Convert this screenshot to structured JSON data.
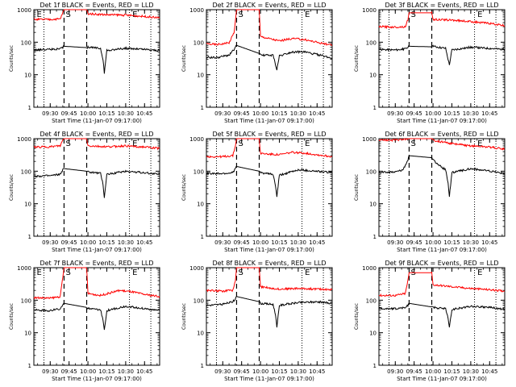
{
  "figure": {
    "x_axis_label": "Start Time (11-Jan-07 09:17:00)",
    "y_axis_label": "Counts/sec",
    "x_tick_labels": [
      "09:30",
      "09:45",
      "10:00",
      "10:15",
      "10:30",
      "10:45"
    ],
    "y_tick_labels": [
      "1",
      "10",
      "100",
      "1000"
    ],
    "colors": {
      "events": "#000000",
      "lld": "#ff0000",
      "frame": "#000000",
      "background": "#ffffff"
    },
    "markers": {
      "S": "S",
      "E": "E"
    }
  },
  "chart_data": [
    {
      "type": "line",
      "title": "Det 1f BLACK = Events, RED = LLD",
      "xlabel": "Start Time (11-Jan-07 09:17:00)",
      "ylabel": "Counts/sec",
      "x_unit": "time of day (hh:mm)",
      "xlim": [
        "09:17",
        "10:57"
      ],
      "ylim": [
        1,
        1000
      ],
      "yscale": "log",
      "vertical_lines": {
        "dashed": [
          "09:41",
          "09:59"
        ],
        "dotted": [
          "09:25",
          "10:33",
          "10:50"
        ]
      },
      "markers": [
        {
          "label": "E",
          "x": "09:18"
        },
        {
          "label": "S",
          "x": "09:41"
        },
        {
          "label": "E",
          "x": "10:34"
        }
      ],
      "gap": [
        "09:41",
        "09:59"
      ],
      "series": [
        {
          "name": "LLD",
          "color": "#ff0000",
          "x": [
            "09:17",
            "09:30",
            "09:38",
            "09:40",
            "09:41",
            "09:59",
            "10:00",
            "10:15",
            "10:30",
            "10:45",
            "10:57"
          ],
          "y": [
            500,
            500,
            520,
            800,
            1000,
            1000,
            750,
            700,
            680,
            620,
            560
          ]
        },
        {
          "name": "Events",
          "color": "#000000",
          "x": [
            "09:17",
            "09:30",
            "09:38",
            "09:40",
            "09:41",
            "09:59",
            "10:00",
            "10:10",
            "10:12",
            "10:13",
            "10:15",
            "10:30",
            "10:45",
            "10:57"
          ],
          "y": [
            58,
            60,
            62,
            70,
            75,
            68,
            70,
            65,
            30,
            11,
            55,
            65,
            60,
            55
          ]
        }
      ]
    },
    {
      "type": "line",
      "title": "Det 2f BLACK = Events, RED = LLD",
      "xlabel": "Start Time (11-Jan-07 09:17:00)",
      "ylabel": "Counts/sec",
      "x_unit": "time of day (hh:mm)",
      "xlim": [
        "09:17",
        "10:57"
      ],
      "ylim": [
        1,
        1000
      ],
      "yscale": "log",
      "vertical_lines": {
        "dashed": [
          "09:41",
          "09:59"
        ],
        "dotted": [
          "09:25",
          "10:33",
          "10:50"
        ]
      },
      "markers": [
        {
          "label": "S",
          "x": "09:41"
        },
        {
          "label": "E",
          "x": "10:34"
        }
      ],
      "gap": [
        "09:41",
        "09:59"
      ],
      "series": [
        {
          "name": "LLD",
          "color": "#ff0000",
          "x": [
            "09:17",
            "09:25",
            "09:35",
            "09:39",
            "09:41",
            "09:59",
            "10:00",
            "10:15",
            "10:25",
            "10:35",
            "10:45",
            "10:57"
          ],
          "y": [
            90,
            85,
            95,
            200,
            1000,
            1000,
            150,
            110,
            130,
            120,
            100,
            80
          ]
        },
        {
          "name": "Events",
          "color": "#000000",
          "x": [
            "09:17",
            "09:25",
            "09:35",
            "09:39",
            "09:41",
            "09:59",
            "10:00",
            "10:10",
            "10:12",
            "10:13",
            "10:15",
            "10:25",
            "10:35",
            "10:45",
            "10:57"
          ],
          "y": [
            35,
            33,
            40,
            60,
            80,
            45,
            40,
            40,
            20,
            14,
            38,
            50,
            50,
            42,
            32
          ]
        }
      ]
    },
    {
      "type": "line",
      "title": "Det 3f BLACK = Events, RED = LLD",
      "xlabel": "Start Time (11-Jan-07 09:17:00)",
      "ylabel": "Counts/sec",
      "x_unit": "time of day (hh:mm)",
      "xlim": [
        "09:17",
        "10:57"
      ],
      "ylim": [
        1,
        1000
      ],
      "yscale": "log",
      "vertical_lines": {
        "dashed": [
          "09:41",
          "09:59"
        ],
        "dotted": [
          "09:25",
          "10:33",
          "10:50"
        ]
      },
      "markers": [
        {
          "label": "S",
          "x": "09:41"
        },
        {
          "label": "E",
          "x": "10:34"
        }
      ],
      "gap": [
        "09:41",
        "09:59"
      ],
      "series": [
        {
          "name": "LLD",
          "color": "#ff0000",
          "x": [
            "09:17",
            "09:30",
            "09:38",
            "09:40",
            "09:41",
            "09:59",
            "10:00",
            "10:15",
            "10:30",
            "10:45",
            "10:57"
          ],
          "y": [
            300,
            290,
            300,
            500,
            800,
            800,
            500,
            480,
            430,
            380,
            320
          ]
        },
        {
          "name": "Events",
          "color": "#000000",
          "x": [
            "09:17",
            "09:30",
            "09:38",
            "09:40",
            "09:41",
            "09:59",
            "10:00",
            "10:10",
            "10:12",
            "10:13",
            "10:15",
            "10:30",
            "10:45",
            "10:57"
          ],
          "y": [
            60,
            58,
            62,
            70,
            75,
            72,
            75,
            65,
            30,
            20,
            58,
            70,
            65,
            60
          ]
        }
      ]
    },
    {
      "type": "line",
      "title": "Det 4f BLACK = Events, RED = LLD",
      "xlabel": "Start Time (11-Jan-07 09:17:00)",
      "ylabel": "Counts/sec",
      "x_unit": "time of day (hh:mm)",
      "xlim": [
        "09:17",
        "10:57"
      ],
      "ylim": [
        1,
        1000
      ],
      "yscale": "log",
      "vertical_lines": {
        "dashed": [
          "09:41",
          "09:59"
        ],
        "dotted": [
          "09:25",
          "10:33",
          "10:50"
        ]
      },
      "markers": [
        {
          "label": "S",
          "x": "09:41"
        },
        {
          "label": "E",
          "x": "10:34"
        }
      ],
      "gap": [
        "09:41",
        "09:59"
      ],
      "series": [
        {
          "name": "LLD",
          "color": "#ff0000",
          "x": [
            "09:17",
            "09:30",
            "09:38",
            "09:40",
            "09:41",
            "09:59",
            "10:00",
            "10:15",
            "10:30",
            "10:45",
            "10:57"
          ],
          "y": [
            550,
            560,
            600,
            900,
            1000,
            1000,
            600,
            560,
            600,
            550,
            500
          ]
        },
        {
          "name": "Events",
          "color": "#000000",
          "x": [
            "09:17",
            "09:30",
            "09:38",
            "09:40",
            "09:41",
            "09:59",
            "10:00",
            "10:10",
            "10:12",
            "10:13",
            "10:15",
            "10:30",
            "10:45",
            "10:57"
          ],
          "y": [
            70,
            72,
            80,
            110,
            120,
            100,
            95,
            85,
            40,
            15,
            80,
            100,
            90,
            80
          ]
        }
      ]
    },
    {
      "type": "line",
      "title": "Det 5f BLACK = Events, RED = LLD",
      "xlabel": "Start Time (11-Jan-07 09:17:00)",
      "ylabel": "Counts/sec",
      "x_unit": "time of day (hh:mm)",
      "xlim": [
        "09:17",
        "10:57"
      ],
      "ylim": [
        1,
        1000
      ],
      "yscale": "log",
      "vertical_lines": {
        "dashed": [
          "09:41",
          "09:59"
        ],
        "dotted": [
          "09:25",
          "10:33",
          "10:50"
        ]
      },
      "markers": [
        {
          "label": "S",
          "x": "09:41"
        },
        {
          "label": "E",
          "x": "10:34"
        }
      ],
      "gap": [
        "09:41",
        "09:59"
      ],
      "series": [
        {
          "name": "LLD",
          "color": "#ff0000",
          "x": [
            "09:17",
            "09:30",
            "09:38",
            "09:40",
            "09:41",
            "09:59",
            "10:00",
            "10:15",
            "10:25",
            "10:35",
            "10:45",
            "10:57"
          ],
          "y": [
            280,
            280,
            300,
            600,
            1000,
            1000,
            350,
            320,
            380,
            360,
            320,
            280
          ]
        },
        {
          "name": "Events",
          "color": "#000000",
          "x": [
            "09:17",
            "09:30",
            "09:38",
            "09:40",
            "09:41",
            "09:59",
            "10:00",
            "10:10",
            "10:12",
            "10:13",
            "10:15",
            "10:30",
            "10:45",
            "10:57"
          ],
          "y": [
            85,
            85,
            90,
            120,
            140,
            100,
            90,
            80,
            35,
            16,
            75,
            110,
            100,
            90
          ]
        }
      ]
    },
    {
      "type": "line",
      "title": "Det 6f BLACK = Events, RED = LLD",
      "xlabel": "Start Time (11-Jan-07 09:17:00)",
      "ylabel": "Counts/sec",
      "x_unit": "time of day (hh:mm)",
      "xlim": [
        "09:17",
        "10:57"
      ],
      "ylim": [
        1,
        1000
      ],
      "yscale": "log",
      "vertical_lines": {
        "dashed": [
          "09:41",
          "09:59"
        ],
        "dotted": [
          "09:25",
          "10:33",
          "10:50"
        ]
      },
      "markers": [
        {
          "label": "S",
          "x": "09:41"
        },
        {
          "label": "E",
          "x": "10:34"
        }
      ],
      "gap": [
        "09:41",
        "09:59"
      ],
      "series": [
        {
          "name": "LLD",
          "color": "#ff0000",
          "x": [
            "09:17",
            "09:30",
            "09:36",
            "09:40",
            "09:41",
            "09:59",
            "10:00",
            "10:15",
            "10:30",
            "10:45",
            "10:57"
          ],
          "y": [
            900,
            900,
            950,
            1000,
            1000,
            1000,
            900,
            700,
            600,
            550,
            480
          ]
        },
        {
          "name": "Events",
          "color": "#000000",
          "x": [
            "09:17",
            "09:30",
            "09:36",
            "09:40",
            "09:41",
            "09:59",
            "10:00",
            "10:05",
            "10:10",
            "10:12",
            "10:13",
            "10:15",
            "10:30",
            "10:45",
            "10:57"
          ],
          "y": [
            90,
            95,
            110,
            220,
            300,
            260,
            220,
            150,
            110,
            45,
            16,
            90,
            120,
            100,
            85
          ]
        }
      ]
    },
    {
      "type": "line",
      "title": "Det 7f BLACK = Events, RED = LLD",
      "xlabel": "Start Time (11-Jan-07 09:17:00)",
      "ylabel": "Counts/sec",
      "x_unit": "time of day (hh:mm)",
      "xlim": [
        "09:17",
        "10:57"
      ],
      "ylim": [
        1,
        1000
      ],
      "yscale": "log",
      "vertical_lines": {
        "dashed": [
          "09:41",
          "09:59"
        ],
        "dotted": [
          "09:25",
          "10:33",
          "10:50"
        ]
      },
      "markers": [
        {
          "label": "E",
          "x": "09:18"
        },
        {
          "label": "S",
          "x": "09:41"
        },
        {
          "label": "E",
          "x": "10:34"
        }
      ],
      "gap": [
        "09:41",
        "09:59"
      ],
      "series": [
        {
          "name": "LLD",
          "color": "#ff0000",
          "x": [
            "09:17",
            "09:30",
            "09:38",
            "09:40",
            "09:41",
            "09:59",
            "10:00",
            "10:10",
            "10:25",
            "10:35",
            "10:45",
            "10:57"
          ],
          "y": [
            120,
            115,
            130,
            500,
            1000,
            1000,
            160,
            140,
            200,
            180,
            150,
            130
          ]
        },
        {
          "name": "Events",
          "color": "#000000",
          "x": [
            "09:17",
            "09:30",
            "09:38",
            "09:40",
            "09:41",
            "09:59",
            "10:00",
            "10:10",
            "10:12",
            "10:13",
            "10:15",
            "10:30",
            "10:45",
            "10:57"
          ],
          "y": [
            50,
            48,
            55,
            70,
            80,
            60,
            55,
            50,
            25,
            12,
            48,
            65,
            55,
            48
          ]
        }
      ]
    },
    {
      "type": "line",
      "title": "Det 8f BLACK = Events, RED = LLD",
      "xlabel": "Start Time (11-Jan-07 09:17:00)",
      "ylabel": "Counts/sec",
      "x_unit": "time of day (hh:mm)",
      "xlim": [
        "09:17",
        "10:57"
      ],
      "ylim": [
        1,
        1000
      ],
      "yscale": "log",
      "vertical_lines": {
        "dashed": [
          "09:41",
          "09:59"
        ],
        "dotted": [
          "09:25",
          "10:33",
          "10:50"
        ]
      },
      "markers": [
        {
          "label": "S",
          "x": "09:41"
        },
        {
          "label": "E",
          "x": "10:34"
        }
      ],
      "gap": [
        "09:41",
        "09:59"
      ],
      "series": [
        {
          "name": "LLD",
          "color": "#ff0000",
          "x": [
            "09:17",
            "09:30",
            "09:38",
            "09:40",
            "09:41",
            "09:59",
            "10:00",
            "10:15",
            "10:30",
            "10:45",
            "10:57"
          ],
          "y": [
            200,
            190,
            200,
            400,
            1000,
            1000,
            260,
            220,
            230,
            220,
            210
          ]
        },
        {
          "name": "Events",
          "color": "#000000",
          "x": [
            "09:17",
            "09:30",
            "09:38",
            "09:40",
            "09:41",
            "09:59",
            "10:00",
            "10:10",
            "10:12",
            "10:13",
            "10:15",
            "10:30",
            "10:45",
            "10:57"
          ],
          "y": [
            70,
            75,
            90,
            110,
            130,
            90,
            80,
            75,
            35,
            14,
            70,
            85,
            90,
            80
          ]
        }
      ]
    },
    {
      "type": "line",
      "title": "Det 9f BLACK = Events, RED = LLD",
      "xlabel": "Start Time (11-Jan-07 09:17:00)",
      "ylabel": "Counts/sec",
      "x_unit": "time of day (hh:mm)",
      "xlim": [
        "09:17",
        "10:57"
      ],
      "ylim": [
        1,
        1000
      ],
      "yscale": "log",
      "vertical_lines": {
        "dashed": [
          "09:41",
          "09:59"
        ],
        "dotted": [
          "09:25",
          "10:33",
          "10:50"
        ]
      },
      "markers": [
        {
          "label": "S",
          "x": "09:41"
        },
        {
          "label": "E",
          "x": "10:34"
        }
      ],
      "gap": [
        "09:41",
        "09:59"
      ],
      "series": [
        {
          "name": "LLD",
          "color": "#ff0000",
          "x": [
            "09:17",
            "09:30",
            "09:38",
            "09:40",
            "09:41",
            "09:59",
            "10:00",
            "10:15",
            "10:30",
            "10:45",
            "10:57"
          ],
          "y": [
            140,
            140,
            160,
            400,
            700,
            700,
            300,
            260,
            230,
            210,
            190
          ]
        },
        {
          "name": "Events",
          "color": "#000000",
          "x": [
            "09:17",
            "09:30",
            "09:38",
            "09:40",
            "09:41",
            "09:59",
            "10:00",
            "10:10",
            "10:12",
            "10:13",
            "10:15",
            "10:30",
            "10:45",
            "10:57"
          ],
          "y": [
            55,
            55,
            60,
            70,
            80,
            62,
            60,
            55,
            28,
            14,
            52,
            65,
            60,
            52
          ]
        }
      ]
    }
  ]
}
